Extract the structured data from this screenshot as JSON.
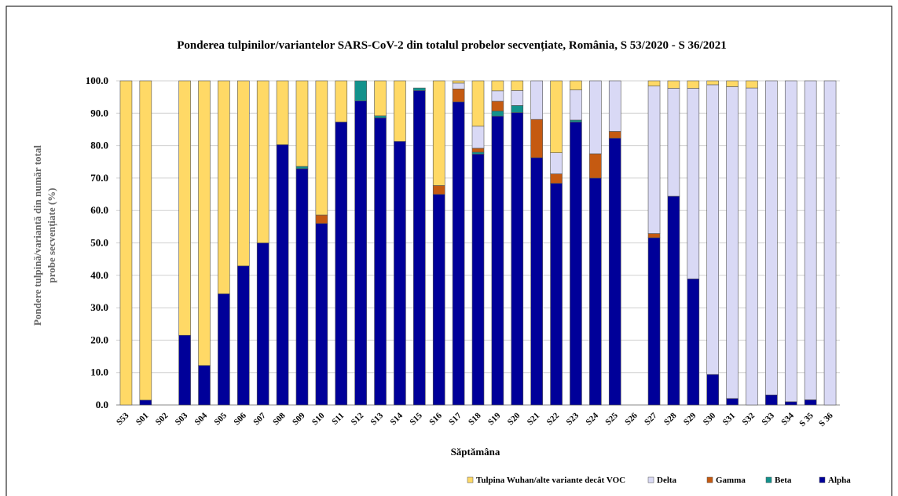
{
  "chart_data": {
    "type": "bar",
    "stacked": true,
    "title": "Ponderea tulpinilor/variantelor SARS-CoV-2 din totalul probelor secvențiate, România, S 53/2020 - S 36/2021",
    "y_label": [
      "Pondere tulpină/variantă din număr total",
      "probe secvențiate (%)"
    ],
    "x_label": "Săptămâna",
    "categories": [
      "S53",
      "S01",
      "S02",
      "S03",
      "S04",
      "S05",
      "S06",
      "S07",
      "S08",
      "S09",
      "S10",
      "S11",
      "S12",
      "S13",
      "S14",
      "S15",
      "S16",
      "S17",
      "S18",
      "S19",
      "S20",
      "S21",
      "S22",
      "S23",
      "S24",
      "S25",
      "S26",
      "S27",
      "S28",
      "S29",
      "S30",
      "S31",
      "S32",
      "S33",
      "S34",
      "S 35",
      "S 36"
    ],
    "series": [
      {
        "name": "Alpha",
        "color": "#000099",
        "values": [
          0,
          1.5,
          0,
          21.5,
          12.2,
          34.3,
          42.9,
          50,
          80.3,
          72.9,
          56,
          87.3,
          93.8,
          88.6,
          81.3,
          97,
          65,
          93.5,
          77.4,
          89.1,
          90.2,
          76.3,
          68.4,
          87.3,
          70,
          82.3,
          0,
          51.6,
          64.4,
          38.9,
          9.4,
          2,
          0,
          3.1,
          1,
          1.6,
          0
        ]
      },
      {
        "name": "Beta",
        "color": "#13928c",
        "values": [
          0,
          0,
          0,
          0,
          0,
          0,
          0,
          0,
          0,
          0.7,
          0,
          0,
          6.2,
          0.6,
          0,
          0.8,
          0,
          0,
          0.6,
          1.6,
          2.2,
          0,
          0,
          0.6,
          0,
          0,
          0,
          0,
          0,
          0,
          0,
          0,
          0,
          0,
          0,
          0,
          0
        ]
      },
      {
        "name": "Gamma",
        "color": "#c55a11",
        "values": [
          0,
          0,
          0,
          0,
          0,
          0,
          0,
          0,
          0,
          0,
          2.6,
          0,
          0,
          0,
          0,
          0,
          2.7,
          4,
          1.2,
          3,
          0,
          11.8,
          2.9,
          0,
          7.5,
          2.1,
          0,
          1.3,
          0,
          0,
          0,
          0,
          0,
          0,
          0,
          0,
          0
        ]
      },
      {
        "name": "Delta",
        "color": "#d9d9f5",
        "values": [
          0,
          0,
          0,
          0,
          0,
          0,
          0,
          0,
          0,
          0,
          0,
          0,
          0,
          0,
          0,
          0,
          0,
          1.8,
          6.8,
          3.2,
          4.6,
          11.9,
          6.5,
          9.3,
          22.5,
          15.6,
          0,
          45.5,
          33.3,
          58.8,
          89.4,
          96.2,
          97.8,
          96.9,
          99,
          98.4,
          100
        ]
      },
      {
        "name": "Tulpina Wuhan/alte variante decât VOC",
        "color": "#ffd966",
        "values": [
          100,
          98.5,
          0,
          78.5,
          87.8,
          65.7,
          57.1,
          50,
          19.7,
          26.4,
          41.4,
          12.7,
          0,
          10.8,
          18.7,
          0,
          32.3,
          0.7,
          14,
          3.1,
          3,
          0,
          22.2,
          2.8,
          0,
          0,
          0,
          1.6,
          2.3,
          2.3,
          1.2,
          1.8,
          2.2,
          0,
          0,
          0,
          0
        ]
      }
    ],
    "ylim": [
      0,
      100
    ],
    "yticks": [
      {
        "value": 0,
        "label": "0.0"
      },
      {
        "value": 10,
        "label": "10.0"
      },
      {
        "value": 20,
        "label": "20.0"
      },
      {
        "value": 30,
        "label": "30.0"
      },
      {
        "value": 40,
        "label": "40.0"
      },
      {
        "value": 50,
        "label": "50.0"
      },
      {
        "value": 60,
        "label": "60.0"
      },
      {
        "value": 70,
        "label": "70.0"
      },
      {
        "value": 80,
        "label": "80.0"
      },
      {
        "value": 90,
        "label": "90.0"
      },
      {
        "value": 100,
        "label": "100.0"
      }
    ],
    "grid": true,
    "legend": "bottom"
  }
}
